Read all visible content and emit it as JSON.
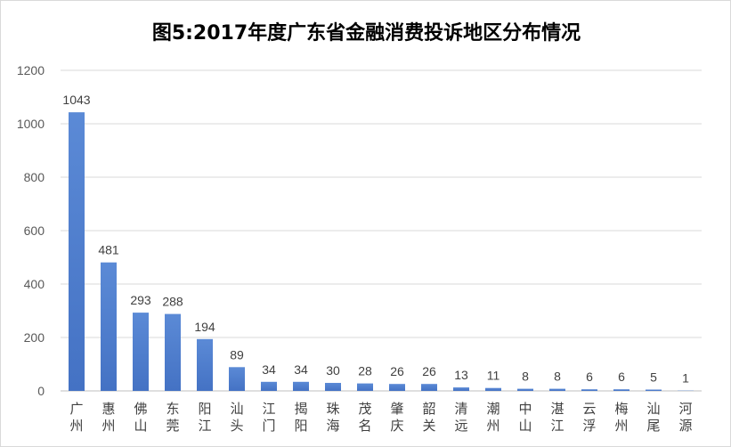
{
  "chart_data": {
    "type": "bar",
    "title": "图5:2017年度广东省金融消费投诉地区分布情况",
    "xlabel": "",
    "ylabel": "",
    "ylim": [
      0,
      1200
    ],
    "yticks": [
      0,
      200,
      400,
      600,
      800,
      1000,
      1200
    ],
    "grid": true,
    "legend": "none",
    "bar_color": "#4472c4",
    "categories": [
      "广州",
      "惠州",
      "佛山",
      "东莞",
      "阳江",
      "汕头",
      "江门",
      "揭阳",
      "珠海",
      "茂名",
      "肇庆",
      "韶关",
      "清远",
      "潮州",
      "中山",
      "湛江",
      "云浮",
      "梅州",
      "汕尾",
      "河源"
    ],
    "values": [
      1043,
      481,
      293,
      288,
      194,
      89,
      34,
      34,
      30,
      28,
      26,
      26,
      13,
      11,
      8,
      8,
      6,
      6,
      5,
      1
    ]
  }
}
